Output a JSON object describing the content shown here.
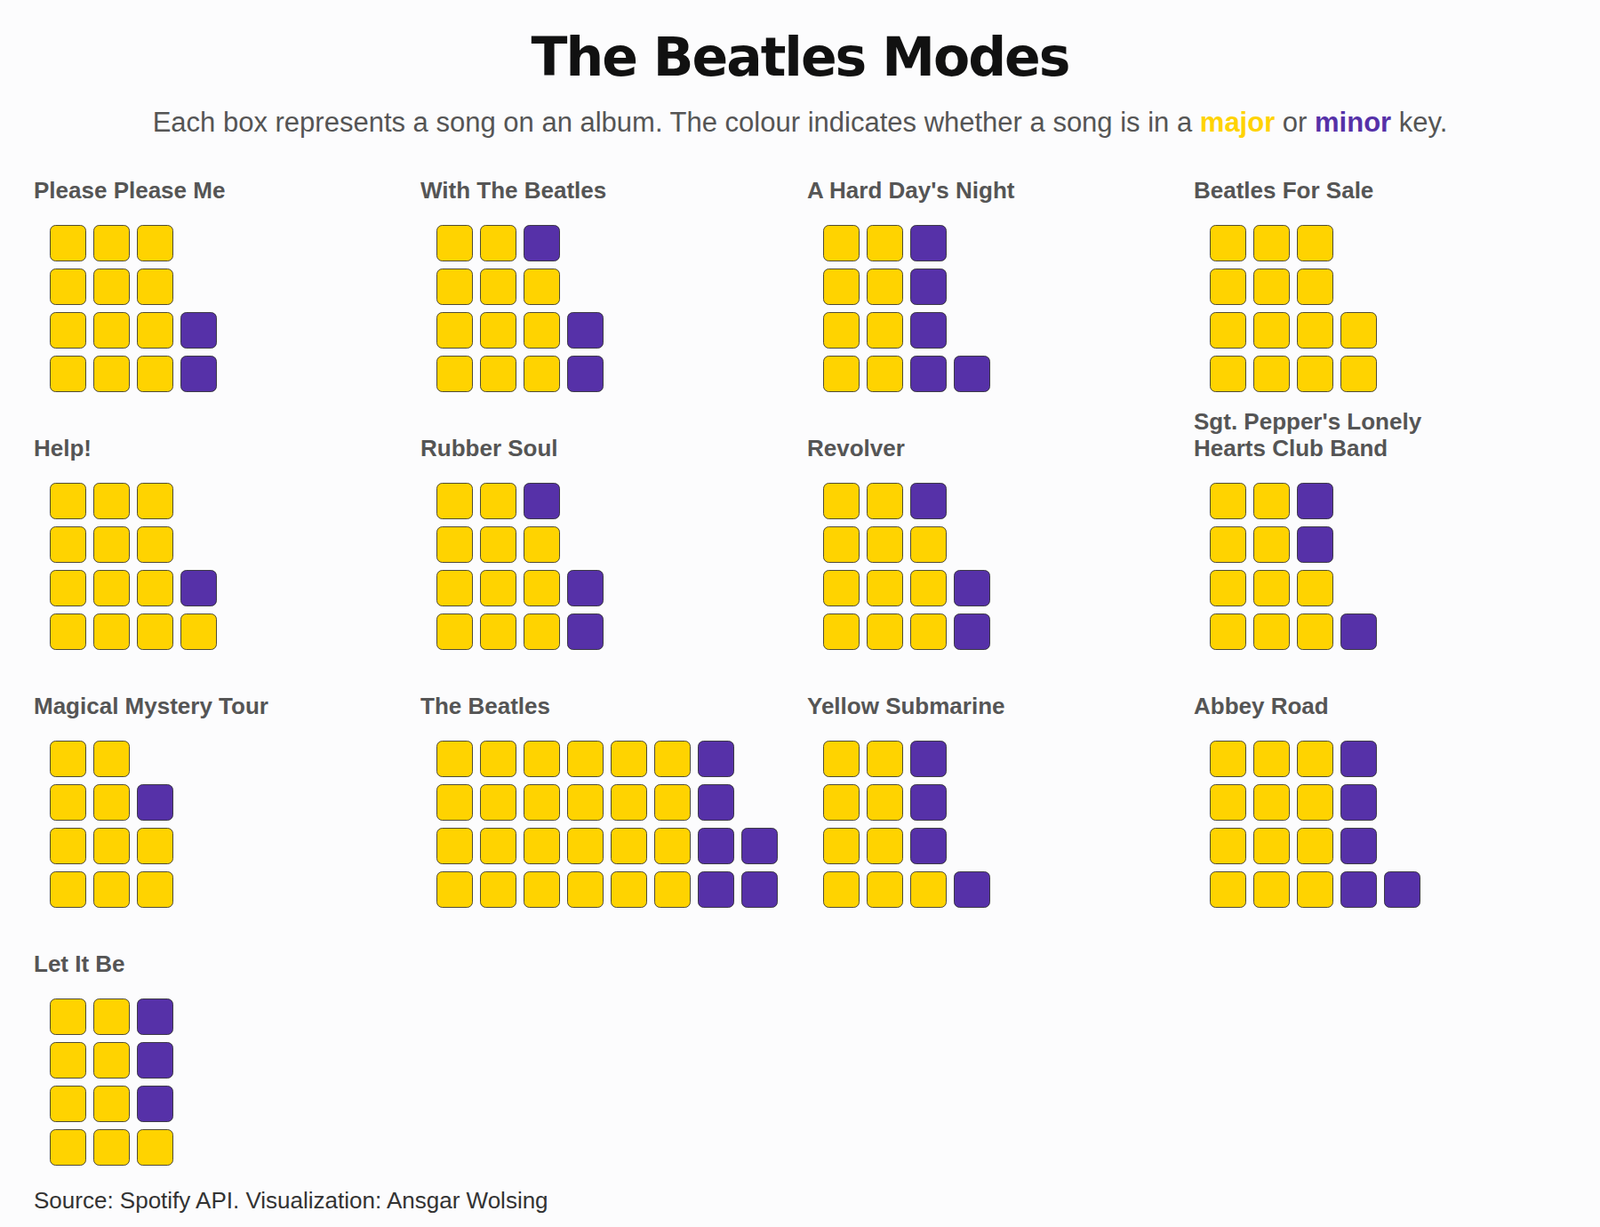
{
  "chart_data": {
    "type": "waffle",
    "title": "The Beatles Modes",
    "subtitle": "Each box represents a song on an album. The colour indicates whether a song is in a major or minor key.",
    "caption": "Source: Spotify API. Visualization: Ansgar Wolsing",
    "categories": [
      "Please Please Me",
      "With The Beatles",
      "A Hard Day's Night",
      "Beatles For Sale",
      "Help!",
      "Rubber Soul",
      "Revolver",
      "Sgt. Pepper's Lonely Hearts Club Band",
      "Magical Mystery Tour",
      "The Beatles",
      "Yellow Submarine",
      "Abbey Road",
      "Let It Be"
    ],
    "series": [
      {
        "name": "major",
        "color": "#FFD300",
        "values": [
          12,
          11,
          8,
          14,
          13,
          11,
          11,
          10,
          10,
          24,
          9,
          12,
          9
        ]
      },
      {
        "name": "minor",
        "color": "#5631A8",
        "values": [
          2,
          3,
          5,
          0,
          1,
          3,
          3,
          3,
          1,
          6,
          4,
          5,
          3
        ]
      }
    ],
    "tick_labels": false
  }
}
